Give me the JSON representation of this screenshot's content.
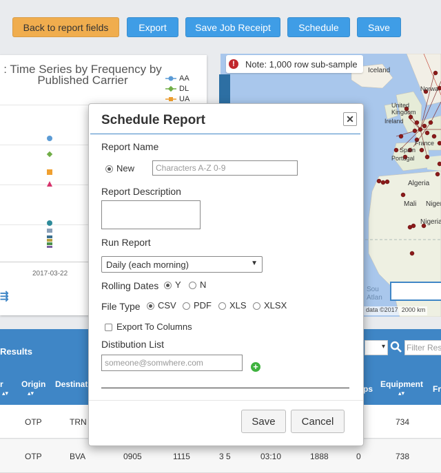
{
  "toolbar": {
    "back_label": "Back to report fields",
    "export_label": "Export",
    "save_receipt_label": "Save Job Receipt",
    "schedule_label": "Schedule",
    "save_label": "Save"
  },
  "chart_panel": {
    "title_line1": ": Time Series by Frequency by",
    "title_line2": "Published Carrier",
    "x_tick": "2017-03-22",
    "colors": {
      "AA": "#5b9bd5",
      "DL": "#70ad47",
      "UA": "#f0a030",
      "red": "#d6336c"
    }
  },
  "chart_data": {
    "type": "scatter",
    "title": ": Time Series by Frequency by Published Carrier",
    "x_categories": [
      "2017-03-22"
    ],
    "series": [
      {
        "name": "AA"
      },
      {
        "name": "DL"
      },
      {
        "name": "UA"
      }
    ]
  },
  "map": {
    "note": "Note: 1,000 row sub-sample",
    "labels": {
      "iceland": "Iceland",
      "norway": "Norwa",
      "uk": "United Kingdom",
      "ireland": "Ireland",
      "france": "France",
      "spain": "Spain",
      "portugal": "Portugal",
      "algeria": "Algeria",
      "mali": "Mali",
      "niger": "Niger",
      "nigeria": "Nigeria",
      "south_atlantic": "Sou Atlan",
      "attribution": "data ©2017",
      "scale": "2000 km"
    }
  },
  "results": {
    "label": "Results",
    "filter_placeholder": "Filter Res",
    "headers": {
      "col0": "r",
      "origin": "Origin",
      "destination": "Destinatio",
      "ps": "ps",
      "equipment": "Equipment",
      "fr": "Fr"
    },
    "rows": [
      {
        "origin": "OTP",
        "destination": "TRN",
        "dep": "",
        "arr": "",
        "stops": "",
        "elapsed": "",
        "distance": "",
        "x": "",
        "equipment": "734"
      },
      {
        "origin": "OTP",
        "destination": "BVA",
        "dep": "0905",
        "arr": "1115",
        "stops": "3 5",
        "elapsed": "03:10",
        "distance": "1888",
        "x": "0",
        "equipment": "738"
      }
    ]
  },
  "modal": {
    "title": "Schedule Report",
    "report_name_label": "Report Name",
    "new_label": "New",
    "name_placeholder": "Characters A-Z 0-9",
    "description_label": "Report Description",
    "run_report_label": "Run Report",
    "run_report_value": "Daily (each morning)",
    "rolling_dates_label": "Rolling Dates",
    "rolling_y": "Y",
    "rolling_n": "N",
    "file_type_label": "File Type",
    "file_types": [
      "CSV",
      "PDF",
      "XLS",
      "XLSX"
    ],
    "export_columns_label": "Export To Columns",
    "distribution_label": "Distibution List",
    "email_placeholder": "someone@somwhere.com",
    "save_label": "Save",
    "cancel_label": "Cancel"
  }
}
